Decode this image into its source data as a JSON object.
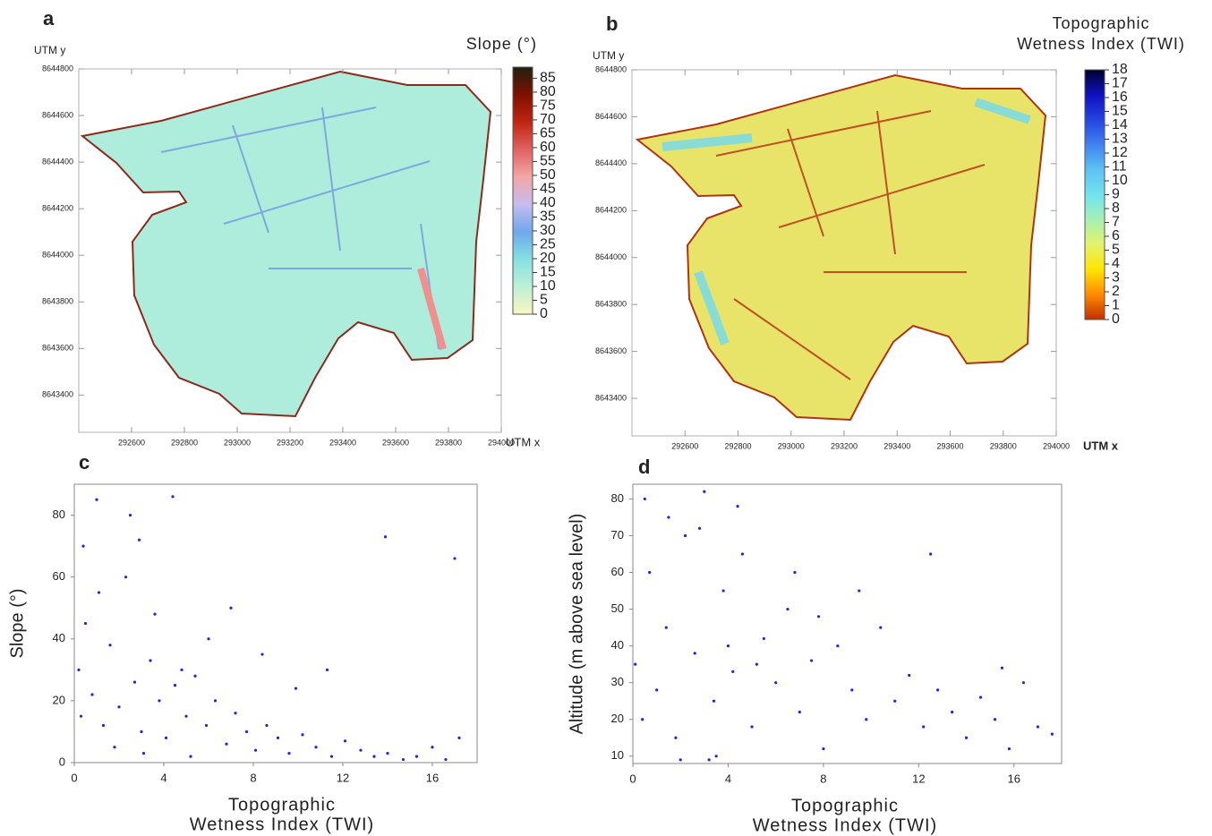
{
  "chart_data": [
    {
      "type": "map",
      "label": "a",
      "xlabel": "UTM x",
      "ylabel": "UTM y",
      "xlim": [
        292400,
        294000
      ],
      "ylim": [
        8643240,
        8644800
      ],
      "xticks": [
        292600,
        292800,
        293000,
        293200,
        293400,
        293600,
        293800,
        294000
      ],
      "yticks": [
        8643400,
        8643600,
        8643800,
        8644000,
        8644200,
        8644400,
        8644600,
        8644800
      ],
      "colorbar": {
        "title": "Slope (°)",
        "lim": [
          0,
          89
        ],
        "ticks": [
          0,
          5,
          10,
          15,
          20,
          25,
          30,
          35,
          40,
          45,
          50,
          55,
          60,
          65,
          70,
          75,
          80,
          85
        ],
        "colors": [
          "#fbf6c2",
          "#bdf0d6",
          "#86e0e2",
          "#6fa6ee",
          "#c6bcef",
          "#f2a6a6",
          "#e06262",
          "#c02412",
          "#801000",
          "#202010"
        ]
      }
    },
    {
      "type": "map",
      "label": "b",
      "xlabel": "UTM x",
      "ylabel": "UTM y",
      "xlim": [
        292400,
        294000
      ],
      "ylim": [
        8643240,
        8644800
      ],
      "xticks": [
        292600,
        292800,
        293000,
        293200,
        293400,
        293600,
        293800,
        294000
      ],
      "yticks": [
        8643400,
        8643600,
        8643800,
        8644000,
        8644200,
        8644400,
        8644600,
        8644800
      ],
      "colorbar": {
        "title": [
          "Topographic",
          "Wetness Index (TWI)"
        ],
        "lim": [
          0,
          18
        ],
        "ticks": [
          0,
          1,
          2,
          3,
          4,
          5,
          6,
          7,
          8,
          9,
          10,
          11,
          12,
          13,
          14,
          15,
          16,
          17,
          18
        ],
        "colors": [
          "#c03000",
          "#ff8a00",
          "#ffe400",
          "#e4f26a",
          "#a6f0b4",
          "#72e2f0",
          "#5ec2f2",
          "#4282f0",
          "#2444e2",
          "#1010c0",
          "#000030"
        ]
      }
    },
    {
      "type": "scatter",
      "label": "c",
      "color": "#2323e0",
      "xlabel": [
        "Topographic",
        "Wetness Index (TWI)"
      ],
      "ylabel": "Slope (°)",
      "xlim": [
        0,
        18
      ],
      "ylim": [
        0,
        90
      ],
      "xticks": [
        0,
        4,
        8,
        12,
        16
      ],
      "yticks": [
        0,
        20,
        40,
        60,
        80
      ],
      "x": [
        0.2,
        0.5,
        0.8,
        1.0,
        1.3,
        1.6,
        2.0,
        2.3,
        2.7,
        3.0,
        3.4,
        3.8,
        4.1,
        4.5,
        5.0,
        5.4,
        5.9,
        6.3,
        6.8,
        7.2,
        7.7,
        8.1,
        8.6,
        9.1,
        9.6,
        10.2,
        10.8,
        11.5,
        12.1,
        12.8,
        13.4,
        14.0,
        14.7,
        15.3,
        16.0,
        16.6,
        17.2,
        0.4,
        1.1,
        2.5,
        3.6,
        4.4,
        6.0,
        8.4,
        11.3,
        1.8,
        3.1,
        5.2,
        0.3,
        2.9,
        13.9,
        17.0,
        9.9,
        7.0,
        4.8
      ],
      "y": [
        30,
        45,
        22,
        85,
        12,
        38,
        18,
        60,
        26,
        10,
        33,
        20,
        8,
        25,
        15,
        28,
        12,
        20,
        6,
        16,
        10,
        4,
        12,
        8,
        3,
        9,
        5,
        2,
        7,
        4,
        2,
        3,
        1,
        2,
        5,
        1,
        8,
        70,
        55,
        80,
        48,
        86,
        40,
        35,
        30,
        5,
        3,
        2,
        15,
        72,
        73,
        66,
        24,
        50,
        30
      ]
    },
    {
      "type": "scatter",
      "label": "d",
      "color": "#2323e0",
      "xlabel": [
        "Topographic",
        "Wetness Index (TWI)"
      ],
      "ylabel": "Altitude (m above sea level)",
      "xlim": [
        0,
        18
      ],
      "ylim": [
        8,
        84
      ],
      "xticks": [
        0,
        4,
        8,
        12,
        16
      ],
      "yticks": [
        10,
        20,
        30,
        40,
        50,
        60,
        70,
        80
      ],
      "x": [
        0.1,
        0.4,
        0.7,
        1.0,
        1.4,
        1.8,
        2.2,
        2.6,
        3.0,
        3.4,
        3.8,
        4.2,
        4.6,
        5.0,
        5.5,
        6.0,
        6.5,
        7.0,
        7.5,
        8.0,
        8.6,
        9.2,
        9.8,
        10.4,
        11.0,
        11.6,
        12.2,
        12.8,
        13.4,
        14.0,
        14.6,
        15.2,
        15.8,
        16.4,
        17.0,
        17.6,
        0.5,
        1.5,
        2.8,
        3.5,
        4.0,
        5.2,
        6.8,
        9.5,
        12.5,
        2.0,
        3.2,
        4.4,
        7.8,
        15.5
      ],
      "y": [
        35,
        20,
        60,
        28,
        45,
        15,
        70,
        38,
        82,
        25,
        55,
        33,
        65,
        18,
        42,
        30,
        50,
        22,
        36,
        12,
        40,
        28,
        20,
        45,
        25,
        32,
        18,
        28,
        22,
        15,
        26,
        20,
        12,
        30,
        18,
        16,
        80,
        75,
        72,
        10,
        40,
        35,
        60,
        55,
        65,
        9,
        9,
        78,
        48,
        34
      ]
    }
  ]
}
